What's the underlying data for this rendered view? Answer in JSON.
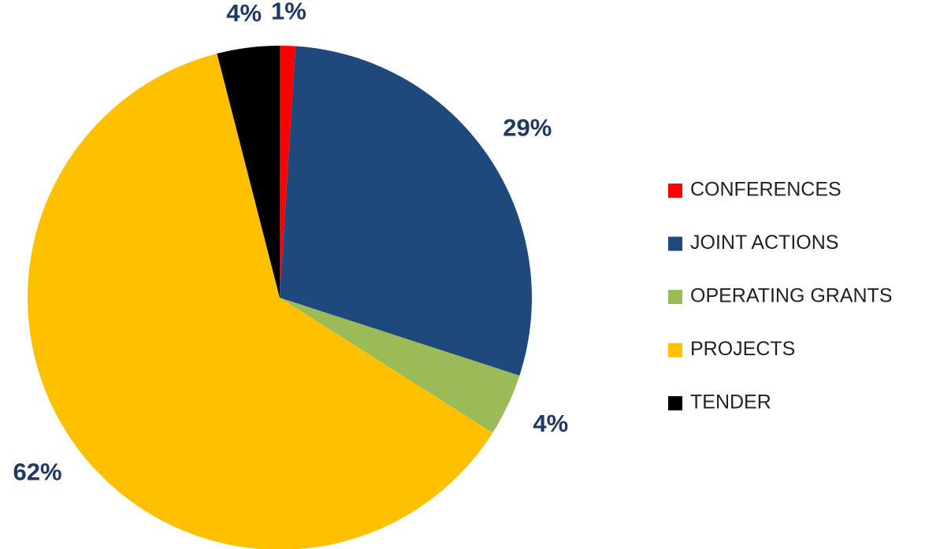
{
  "chart_data": {
    "type": "pie",
    "categories": [
      "CONFERENCES",
      "JOINT ACTIONS",
      "OPERATING GRANTS",
      "PROJECTS",
      "TENDER"
    ],
    "values": [
      1,
      29,
      4,
      62,
      4
    ],
    "value_labels": [
      "1%",
      "29%",
      "4%",
      "62%",
      "4%"
    ],
    "colors": [
      "#ff0000",
      "#1f497d",
      "#9bbb59",
      "#ffc000",
      "#000000"
    ],
    "legend": "right"
  }
}
